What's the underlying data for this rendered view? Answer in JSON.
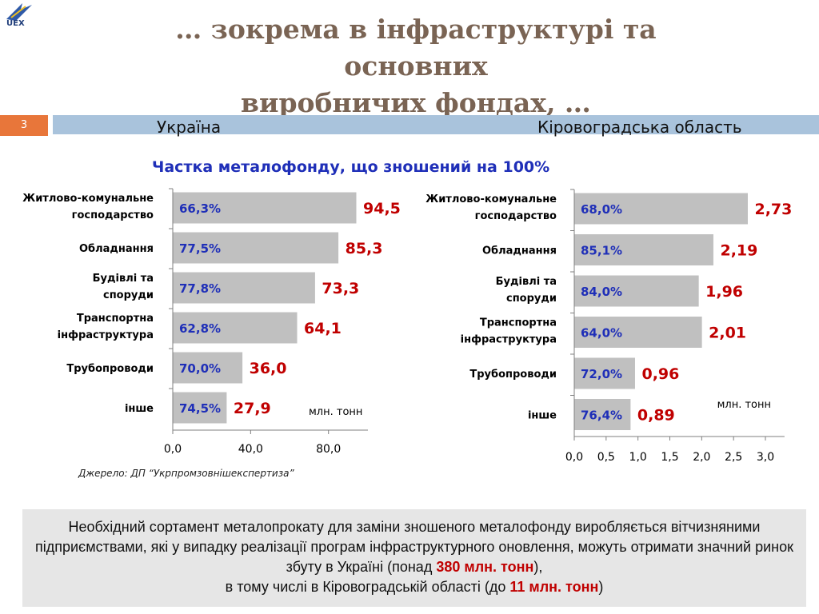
{
  "logo": {
    "text": "UEX"
  },
  "title": {
    "line1": "… зокрема в інфраструктурі та основних",
    "line2": "виробничих фондах, …"
  },
  "slide_number": "3",
  "band": {
    "left_label": "Україна",
    "right_label": "Кіровоградська область"
  },
  "subtitle": "Частка металофонду, що зношений на 100%",
  "chart_data": [
    {
      "type": "bar",
      "orientation": "horizontal",
      "region": "Україна",
      "categories": [
        "Житлово-комунальне господарство",
        "Обладнання",
        "Будівлі та споруди",
        "Транспортна інфраструктура",
        "Трубопроводи",
        "інше"
      ],
      "values": [
        94.5,
        85.3,
        73.3,
        64.1,
        36.0,
        27.9
      ],
      "value_labels": [
        "94,5",
        "85,3",
        "73,3",
        "64,1",
        "36,0",
        "27,9"
      ],
      "share_labels": [
        "66,3%",
        "77,5%",
        "77,8%",
        "62,8%",
        "70,0%",
        "74,5%"
      ],
      "unit_label": "млн. тонн",
      "xlim": [
        0,
        94.5
      ],
      "ticks": [
        0,
        40,
        80
      ],
      "tick_labels": [
        "0,0",
        "40,0",
        "80,0"
      ],
      "bar_color": "#c0c0c0",
      "share_color": "#1f2fb8",
      "value_color": "#c00000"
    },
    {
      "type": "bar",
      "orientation": "horizontal",
      "region": "Кіровоградська область",
      "categories": [
        "Житлово-комунальне господарство",
        "Обладнання",
        "Будівлі та споруди",
        "Транспортна інфраструктура",
        "Трубопроводи",
        "інше"
      ],
      "values": [
        2.73,
        2.19,
        1.96,
        2.01,
        0.96,
        0.89
      ],
      "value_labels": [
        "2,73",
        "2,19",
        "1,96",
        "2,01",
        "0,96",
        "0,89"
      ],
      "share_labels": [
        "68,0%",
        "85,1%",
        "84,0%",
        "64,0%",
        "72,0%",
        "76,4%"
      ],
      "unit_label": "млн. тонн",
      "xlim": [
        0,
        3.0
      ],
      "ticks": [
        0,
        0.5,
        1.0,
        1.5,
        2.0,
        2.5,
        3.0
      ],
      "tick_labels": [
        "0,0",
        "0,5",
        "1,0",
        "1,5",
        "2,0",
        "2,5",
        "3,0"
      ],
      "bar_color": "#c0c0c0",
      "share_color": "#1f2fb8",
      "value_color": "#c00000"
    }
  ],
  "source": "Джерело: ДП “Укрпромзовнішекспертиза”",
  "note": {
    "part1": "Необхідний сортамент металопрокату для заміни зношеного металофонду виробляється вітчизняними підприємствами, які у випадку реалізації програм інфраструктурного оновлення, можуть отримати значний ринок збуту в Україні (понад",
    "highlight1": "380 млн. тонн",
    "part2": "),",
    "part3": "в тому числі в Кіровоградській області  (до",
    "highlight2": "11 млн. тонн",
    "part4": ")"
  }
}
